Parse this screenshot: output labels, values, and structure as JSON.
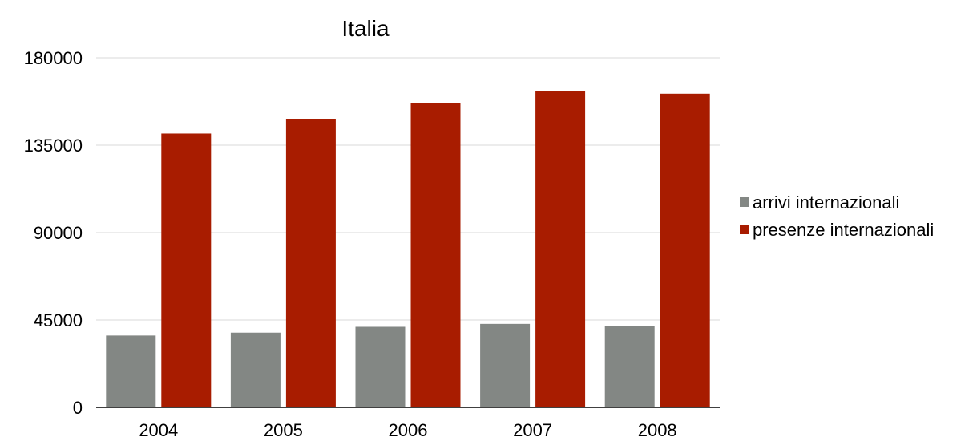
{
  "chart_data": {
    "type": "bar",
    "title": "Italia",
    "categories": [
      "2004",
      "2005",
      "2006",
      "2007",
      "2008"
    ],
    "series": [
      {
        "name": "arrivi internazionali",
        "color": "#838784",
        "values": [
          37000,
          38500,
          41500,
          43000,
          42000
        ]
      },
      {
        "name": "presenze internazionali",
        "color": "#a81c00",
        "values": [
          141000,
          148500,
          156500,
          163000,
          161500
        ]
      }
    ],
    "ylim": [
      0,
      180000
    ],
    "yticks": [
      "0",
      "45000",
      "90000",
      "135000",
      "180000"
    ],
    "ytick_values": [
      0,
      45000,
      90000,
      135000,
      180000
    ],
    "grid": true,
    "legend_position": "right"
  }
}
